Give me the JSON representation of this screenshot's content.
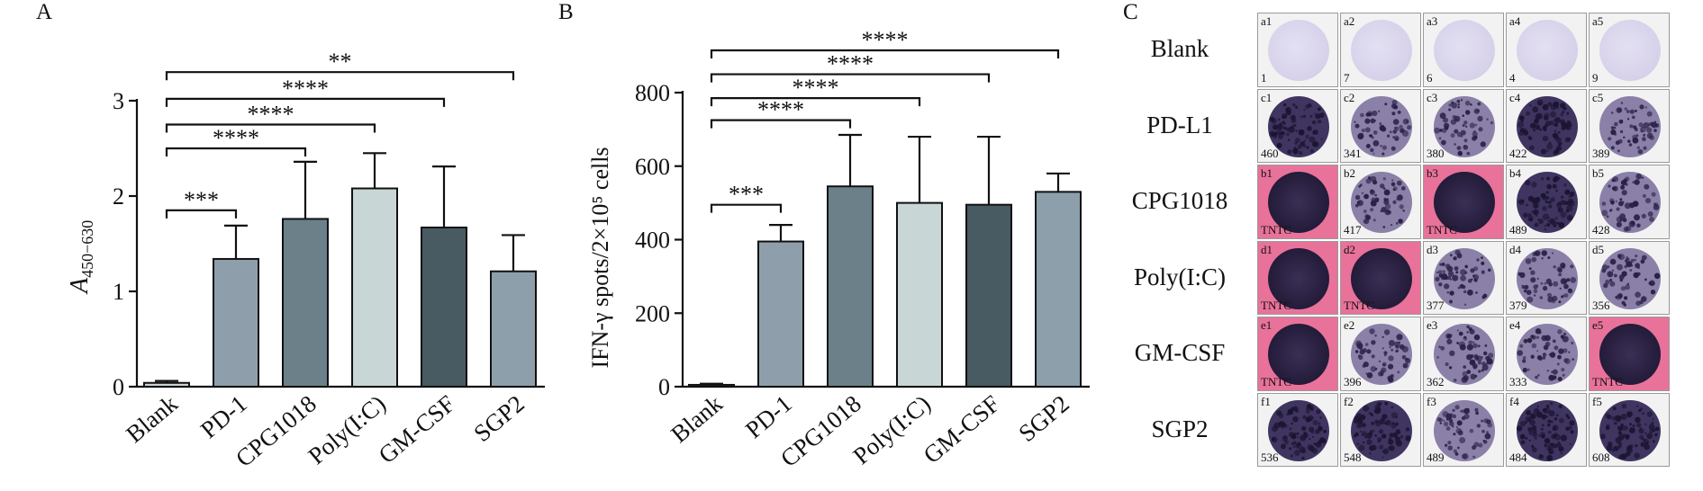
{
  "panels": {
    "a": {
      "letter": "A"
    },
    "b": {
      "letter": "B"
    },
    "c": {
      "letter": "C"
    }
  },
  "chart_data": [
    {
      "type": "bar",
      "panel": "A",
      "ylabel": "A450−630",
      "ylabel_main": "A",
      "ylabel_sub": "450−630",
      "xlabel": "",
      "ylim": [
        0,
        3
      ],
      "yticks": [
        0,
        1,
        2,
        3
      ],
      "categories": [
        "Blank",
        "PD-1",
        "CPG1018",
        "Poly(I:C)",
        "GM-CSF",
        "SGP2"
      ],
      "values": [
        0.04,
        1.34,
        1.76,
        2.08,
        1.67,
        1.21
      ],
      "errors": [
        0.02,
        0.35,
        0.6,
        0.37,
        0.64,
        0.38
      ],
      "colors": [
        "#c9d3d8",
        "#8e9fab",
        "#6b8089",
        "#c9d6d6",
        "#485a62",
        "#8d9fab"
      ],
      "significance": [
        {
          "from": 0,
          "to": 1,
          "label": "***",
          "y": 1.85
        },
        {
          "from": 0,
          "to": 2,
          "label": "****",
          "y": 2.5
        },
        {
          "from": 0,
          "to": 3,
          "label": "****",
          "y": 2.75
        },
        {
          "from": 0,
          "to": 4,
          "label": "****",
          "y": 3.02
        },
        {
          "from": 0,
          "to": 5,
          "label": "**",
          "y": 3.3
        }
      ]
    },
    {
      "type": "bar",
      "panel": "B",
      "ylabel": "IFN-γ spots/2×10⁵ cells",
      "xlabel": "",
      "ylim": [
        0,
        800
      ],
      "yticks": [
        0,
        200,
        400,
        600,
        800
      ],
      "categories": [
        "Blank",
        "PD-1",
        "CPG1018",
        "Poly(I:C)",
        "GM-CSF",
        "SGP2"
      ],
      "values": [
        5,
        395,
        545,
        500,
        495,
        530
      ],
      "errors": [
        3,
        45,
        140,
        180,
        185,
        50
      ],
      "colors": [
        "#c9d3d8",
        "#8e9fab",
        "#6b8089",
        "#c9d6d6",
        "#485a62",
        "#8d9fab"
      ],
      "significance": [
        {
          "from": 0,
          "to": 1,
          "label": "***",
          "y": 495
        },
        {
          "from": 0,
          "to": 2,
          "label": "****",
          "y": 725
        },
        {
          "from": 0,
          "to": 3,
          "label": "****",
          "y": 785
        },
        {
          "from": 0,
          "to": 4,
          "label": "****",
          "y": 850
        },
        {
          "from": 0,
          "to": 5,
          "label": "****",
          "y": 915
        }
      ]
    }
  ],
  "elispot": {
    "rows": [
      {
        "label": "Blank",
        "cells": [
          {
            "id": "a1",
            "count": "1",
            "tntc": false,
            "well": "empty"
          },
          {
            "id": "a2",
            "count": "7",
            "tntc": false,
            "well": "empty"
          },
          {
            "id": "a3",
            "count": "6",
            "tntc": false,
            "well": "empty"
          },
          {
            "id": "a4",
            "count": "4",
            "tntc": false,
            "well": "empty"
          },
          {
            "id": "a5",
            "count": "9",
            "tntc": false,
            "well": "empty"
          }
        ]
      },
      {
        "label": "PD-L1",
        "cells": [
          {
            "id": "c1",
            "count": "460",
            "tntc": false,
            "well": "dense"
          },
          {
            "id": "c2",
            "count": "341",
            "tntc": false,
            "well": "spotty"
          },
          {
            "id": "c3",
            "count": "380",
            "tntc": false,
            "well": "spotty"
          },
          {
            "id": "c4",
            "count": "422",
            "tntc": false,
            "well": "dense"
          },
          {
            "id": "c5",
            "count": "389",
            "tntc": false,
            "well": "spotty"
          }
        ]
      },
      {
        "label": "CPG1018",
        "cells": [
          {
            "id": "b1",
            "count": "TNTC",
            "tntc": true,
            "well": "dark"
          },
          {
            "id": "b2",
            "count": "417",
            "tntc": false,
            "well": "spotty"
          },
          {
            "id": "b3",
            "count": "TNTC",
            "tntc": true,
            "well": "dark"
          },
          {
            "id": "b4",
            "count": "489",
            "tntc": false,
            "well": "dense"
          },
          {
            "id": "b5",
            "count": "428",
            "tntc": false,
            "well": "spotty"
          }
        ]
      },
      {
        "label": "Poly(I:C)",
        "cells": [
          {
            "id": "d1",
            "count": "TNTC",
            "tntc": true,
            "well": "dark"
          },
          {
            "id": "d2",
            "count": "TNTC",
            "tntc": true,
            "well": "dark"
          },
          {
            "id": "d3",
            "count": "377",
            "tntc": false,
            "well": "spotty"
          },
          {
            "id": "d4",
            "count": "379",
            "tntc": false,
            "well": "spotty"
          },
          {
            "id": "d5",
            "count": "356",
            "tntc": false,
            "well": "spotty"
          }
        ]
      },
      {
        "label": "GM-CSF",
        "cells": [
          {
            "id": "e1",
            "count": "TNTC",
            "tntc": true,
            "well": "dark"
          },
          {
            "id": "e2",
            "count": "396",
            "tntc": false,
            "well": "spotty"
          },
          {
            "id": "e3",
            "count": "362",
            "tntc": false,
            "well": "spotty"
          },
          {
            "id": "e4",
            "count": "333",
            "tntc": false,
            "well": "spotty"
          },
          {
            "id": "e5",
            "count": "TNTC",
            "tntc": true,
            "well": "dark"
          }
        ]
      },
      {
        "label": "SGP2",
        "cells": [
          {
            "id": "f1",
            "count": "536",
            "tntc": false,
            "well": "dense"
          },
          {
            "id": "f2",
            "count": "548",
            "tntc": false,
            "well": "dense"
          },
          {
            "id": "f3",
            "count": "489",
            "tntc": false,
            "well": "spotty"
          },
          {
            "id": "f4",
            "count": "484",
            "tntc": false,
            "well": "dense"
          },
          {
            "id": "f5",
            "count": "608",
            "tntc": false,
            "well": "dense"
          }
        ]
      }
    ],
    "well_colors": {
      "empty": "#d6d1ea",
      "spotty": "#8a80a8",
      "dense": "#3f3560",
      "dark": "#221a38",
      "spot": "#2a1f45"
    }
  }
}
